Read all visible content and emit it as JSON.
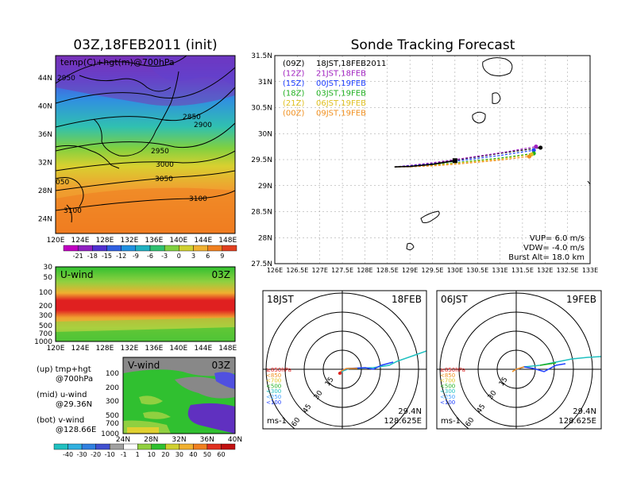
{
  "panel_titles": {
    "map": "03Z,18FEB2011 (init)",
    "track": "Sonde Tracking Forecast"
  },
  "map_panel": {
    "label": "temp(C)+hgt(m)@700hPa",
    "lon_ticks": [
      "120E",
      "124E",
      "128E",
      "132E",
      "136E",
      "140E",
      "144E",
      "148E"
    ],
    "lat_ticks": [
      "44N",
      "40N",
      "36N",
      "32N",
      "28N",
      "24N"
    ],
    "contour_labels": [
      "2950",
      "2850",
      "2900",
      "2950",
      "3000",
      "3050",
      "3100",
      "050",
      "3100"
    ]
  },
  "temp_colorbar": {
    "labels": [
      "-21",
      "-18",
      "-15",
      "-12",
      "-9",
      "-6",
      "-3",
      "0",
      "3",
      "6",
      "9"
    ]
  },
  "uwind_panel": {
    "label": "U-wind",
    "time": "03Z",
    "p_ticks": [
      "30",
      "50",
      "100",
      "200",
      "300",
      "500",
      "700",
      "1000"
    ],
    "lon_ticks": [
      "120E",
      "124E",
      "128E",
      "132E",
      "136E",
      "140E",
      "144E",
      "148E"
    ]
  },
  "vwind_panel": {
    "label": "V-wind",
    "time": "03Z",
    "p_ticks": [
      "100",
      "200",
      "300",
      "500",
      "700",
      "1000"
    ],
    "lat_ticks": [
      "24N",
      "28N",
      "32N",
      "36N",
      "40N"
    ]
  },
  "wind_colorbar": {
    "labels": [
      "-40",
      "-30",
      "-20",
      "-10",
      "-1",
      "1",
      "10",
      "20",
      "30",
      "40",
      "50",
      "60"
    ]
  },
  "notes": [
    {
      "line1": "(up) tmp+hgt",
      "line2": "@700hPa"
    },
    {
      "line1": "(mid) u-wind",
      "line2": "@29.36N"
    },
    {
      "line1": "(bot) v-wind",
      "line2": "@128.66E"
    }
  ],
  "track_panel": {
    "lat_ticks": [
      "31.5N",
      "31N",
      "30.5N",
      "30N",
      "29.5N",
      "29N",
      "28.5N",
      "28N",
      "27.5N"
    ],
    "lon_ticks": [
      "126E",
      "126.5E",
      "127E",
      "127.5E",
      "128E",
      "128.5E",
      "129E",
      "129.5E",
      "130E",
      "130.5E",
      "131E",
      "131.5E",
      "132E",
      "132.5E",
      "133E"
    ],
    "legend": [
      {
        "code": "(09Z)",
        "text": "18JST,18FEB2011",
        "color": "#000000"
      },
      {
        "code": "(12Z)",
        "text": "21JST,18FEB",
        "color": "#a020c0"
      },
      {
        "code": "(15Z)",
        "text": "00JST,19FEB",
        "color": "#2040ff"
      },
      {
        "code": "(18Z)",
        "text": "03JST,19FEB",
        "color": "#20b020"
      },
      {
        "code": "(21Z)",
        "text": "06JST,19FEB",
        "color": "#e0c020"
      },
      {
        "code": "(00Z)",
        "text": "09JST,19FEB",
        "color": "#f09020"
      }
    ],
    "params": {
      "vup": "VUP=  6.0  m/s",
      "vdw": "VDW= -4.0  m/s",
      "burst": "Burst Alt=  18.0  km"
    }
  },
  "chart_data": {
    "type": "line",
    "title": "Sonde Tracking Forecast",
    "xlim": [
      126,
      133
    ],
    "ylim": [
      27.5,
      31.5
    ],
    "launch": {
      "lon": 128.66,
      "lat": 29.36
    },
    "series": [
      {
        "name": "(09Z) 18JST,18FEB2011",
        "color": "#000000",
        "x": [
          128.66,
          129.0,
          129.5,
          130.0,
          131.0,
          131.9
        ],
        "y": [
          29.36,
          29.38,
          29.43,
          29.49,
          29.62,
          29.73
        ]
      },
      {
        "name": "(12Z) 21JST,18FEB",
        "color": "#a020c0",
        "x": [
          128.66,
          129.0,
          129.5,
          130.0,
          131.0,
          131.8
        ],
        "y": [
          29.36,
          29.39,
          29.44,
          29.5,
          29.63,
          29.75
        ]
      },
      {
        "name": "(15Z) 00JST,19FEB",
        "color": "#2040ff",
        "x": [
          128.66,
          129.0,
          129.5,
          130.0,
          131.0,
          131.75
        ],
        "y": [
          29.36,
          29.38,
          29.42,
          29.47,
          29.58,
          29.68
        ]
      },
      {
        "name": "(18Z) 03JST,19FEB",
        "color": "#20b020",
        "x": [
          128.66,
          129.0,
          129.5,
          130.0,
          131.0,
          131.75
        ],
        "y": [
          29.36,
          29.37,
          29.4,
          29.44,
          29.53,
          29.62
        ]
      },
      {
        "name": "(21Z) 06JST,19FEB",
        "color": "#e0c020",
        "x": [
          128.66,
          129.0,
          129.5,
          130.0,
          131.0,
          131.7
        ],
        "y": [
          29.36,
          29.37,
          29.39,
          29.43,
          29.51,
          29.6
        ]
      },
      {
        "name": "(00Z) 09JST,19FEB",
        "color": "#f09020",
        "x": [
          128.66,
          129.0,
          129.5,
          130.0,
          131.0,
          131.65
        ],
        "y": [
          29.36,
          29.36,
          29.38,
          29.41,
          29.49,
          29.56
        ]
      }
    ]
  },
  "hodo_left": {
    "jst": "18JST",
    "date": "18FEB",
    "rings": [
      "15",
      "30",
      "45",
      "60"
    ],
    "lat": "29.4N",
    "lon": "128.625E",
    "unit": "ms-1"
  },
  "hodo_right": {
    "jst": "06JST",
    "date": "19FEB",
    "rings": [
      "15",
      "30",
      "45",
      "60"
    ],
    "lat": "29.4N",
    "lon": "128.625E",
    "unit": "ms-1"
  },
  "hodo_legend": [
    {
      "text": "≥850hPa",
      "color": "#e02020"
    },
    {
      "text": "<850",
      "color": "#f09020"
    },
    {
      "text": "<700",
      "color": "#e0c020"
    },
    {
      "text": "<500",
      "color": "#20b020"
    },
    {
      "text": "<300",
      "color": "#20c0c0"
    },
    {
      "text": "<250",
      "color": "#40a0ff"
    },
    {
      "text": "<100",
      "color": "#2040ff"
    }
  ]
}
